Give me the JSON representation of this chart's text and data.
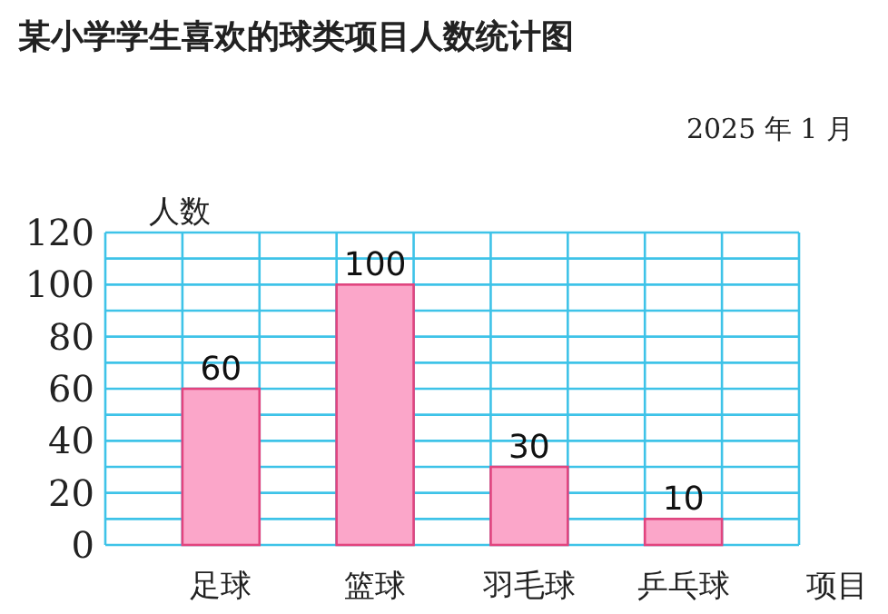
{
  "chart_data": {
    "type": "bar",
    "title": "某小学学生喜欢的球类项目人数统计图",
    "subtitle": "2025 年 1 月",
    "ylabel": "人数",
    "xlabel": "项目",
    "categories": [
      "足球",
      "篮球",
      "羽毛球",
      "乒乓球"
    ],
    "values": [
      60,
      100,
      30,
      10
    ],
    "color": "#fba6c9",
    "ylim": [
      0,
      120
    ],
    "yticks": [
      0,
      {
        "value": 10,
        "label": null
      },
      20,
      {
        "value": 30,
        "label": null
      },
      40,
      {
        "value": 50,
        "label": null
      },
      60,
      {
        "value": 70,
        "label": null
      },
      80,
      {
        "value": 90,
        "label": null
      },
      100,
      {
        "value": 110,
        "label": null
      },
      120
    ],
    "grid": true,
    "data_labels": true
  }
}
